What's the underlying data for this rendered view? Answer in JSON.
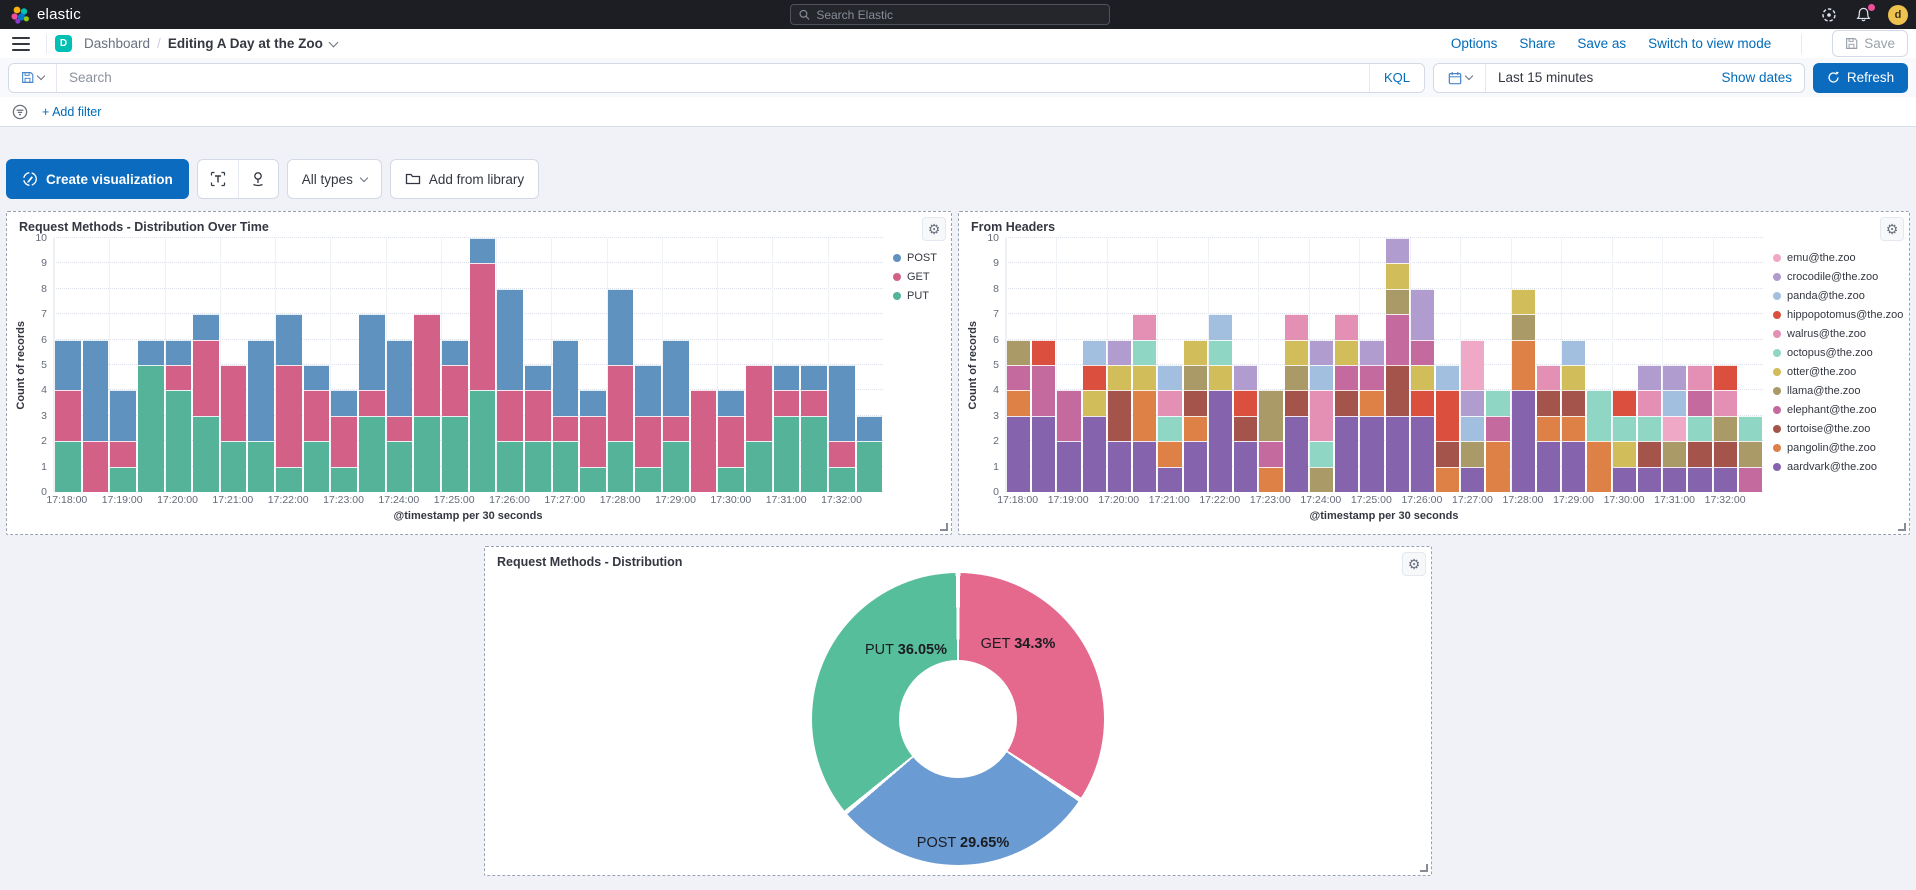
{
  "topbar": {
    "brand": "elastic",
    "search_placeholder": "Search Elastic",
    "avatar_initial": "d"
  },
  "nav": {
    "breadcrumb_root": "Dashboard",
    "breadcrumb_current": "Editing A Day at the Zoo",
    "space_initial": "D",
    "links": [
      "Options",
      "Share",
      "Save as",
      "Switch to view mode"
    ],
    "save_label": "Save"
  },
  "querybar": {
    "placeholder": "Search",
    "kql_label": "KQL",
    "time_range": "Last 15 minutes",
    "show_dates_label": "Show dates",
    "refresh_label": "Refresh",
    "add_filter_label": "+ Add filter"
  },
  "edit_toolbar": {
    "create_viz_label": "Create visualization",
    "all_types_label": "All types",
    "add_from_library_label": "Add from library"
  },
  "colors": {
    "primary": "#0a6bbf",
    "link": "#006bb8",
    "topbar_bg": "#1d1e24",
    "panel_border": "#98a2b3",
    "space_badge": "#00bfb3",
    "notification_dot": "#f04e98"
  },
  "chart_data": [
    {
      "type": "bar",
      "stacked": true,
      "title": "Request Methods - Distribution Over Time",
      "xlabel": "@timestamp per 30 seconds",
      "ylabel": "Count of records",
      "ylim": [
        0,
        10
      ],
      "y_ticks": [
        0,
        1,
        2,
        3,
        4,
        5,
        6,
        7,
        8,
        9,
        10
      ],
      "legend_position": "right",
      "x_ticks": [
        "17:18:00",
        "17:19:00",
        "17:20:00",
        "17:21:00",
        "17:22:00",
        "17:23:00",
        "17:24:00",
        "17:25:00",
        "17:26:00",
        "17:27:00",
        "17:28:00",
        "17:29:00",
        "17:30:00",
        "17:31:00",
        "17:32:00"
      ],
      "categories": [
        "17:18:00",
        "17:18:30",
        "17:19:00",
        "17:19:30",
        "17:20:00",
        "17:20:30",
        "17:21:00",
        "17:21:30",
        "17:22:00",
        "17:22:30",
        "17:23:00",
        "17:23:30",
        "17:24:00",
        "17:24:30",
        "17:25:00",
        "17:25:30",
        "17:26:00",
        "17:26:30",
        "17:27:00",
        "17:27:30",
        "17:28:00",
        "17:28:30",
        "17:29:00",
        "17:29:30",
        "17:30:00",
        "17:30:30",
        "17:31:00",
        "17:31:30",
        "17:32:00",
        "17:32:30"
      ],
      "stack_order": [
        "PUT",
        "GET",
        "POST"
      ],
      "series": [
        {
          "name": "POST",
          "color": "#6092c0",
          "values": [
            2,
            4,
            2,
            1,
            1,
            1,
            0,
            4,
            2,
            1,
            1,
            3,
            3,
            0,
            1,
            1,
            4,
            1,
            3,
            1,
            3,
            2,
            3,
            0,
            1,
            0,
            1,
            1,
            3,
            1
          ]
        },
        {
          "name": "GET",
          "color": "#d36086",
          "values": [
            2,
            2,
            1,
            0,
            1,
            3,
            3,
            0,
            4,
            2,
            2,
            1,
            1,
            4,
            2,
            5,
            2,
            2,
            1,
            2,
            3,
            2,
            1,
            4,
            2,
            3,
            1,
            1,
            1,
            0
          ]
        },
        {
          "name": "PUT",
          "color": "#54b399",
          "values": [
            2,
            0,
            1,
            5,
            4,
            3,
            2,
            2,
            1,
            2,
            1,
            3,
            2,
            3,
            3,
            4,
            2,
            2,
            2,
            1,
            2,
            1,
            2,
            0,
            1,
            2,
            3,
            3,
            1,
            2
          ]
        }
      ]
    },
    {
      "type": "bar",
      "stacked": true,
      "title": "From Headers",
      "xlabel": "@timestamp per 30 seconds",
      "ylabel": "Count of records",
      "ylim": [
        0,
        10
      ],
      "y_ticks": [
        0,
        1,
        2,
        3,
        4,
        5,
        6,
        7,
        8,
        9,
        10
      ],
      "legend_position": "right",
      "x_ticks": [
        "17:18:00",
        "17:19:00",
        "17:20:00",
        "17:21:00",
        "17:22:00",
        "17:23:00",
        "17:24:00",
        "17:25:00",
        "17:26:00",
        "17:27:00",
        "17:28:00",
        "17:29:00",
        "17:30:00",
        "17:31:00",
        "17:32:00"
      ],
      "categories": [
        "17:18:00",
        "17:18:30",
        "17:19:00",
        "17:19:30",
        "17:20:00",
        "17:20:30",
        "17:21:00",
        "17:21:30",
        "17:22:00",
        "17:22:30",
        "17:23:00",
        "17:23:30",
        "17:24:00",
        "17:24:30",
        "17:25:00",
        "17:25:30",
        "17:26:00",
        "17:26:30",
        "17:27:00",
        "17:27:30",
        "17:28:00",
        "17:28:30",
        "17:29:00",
        "17:29:30",
        "17:30:00",
        "17:30:30",
        "17:31:00",
        "17:31:30",
        "17:32:00",
        "17:32:30"
      ],
      "legend": [
        {
          "key": "emu",
          "label": "emu@the.zoo",
          "color": "#efa9c6"
        },
        {
          "key": "crocodile",
          "label": "crocodile@the.zoo",
          "color": "#b09ccf"
        },
        {
          "key": "panda",
          "label": "panda@the.zoo",
          "color": "#a2bfe0"
        },
        {
          "key": "hippopotomus",
          "label": "hippopotomus@the.zoo",
          "color": "#da4f3e"
        },
        {
          "key": "walrus",
          "label": "walrus@the.zoo",
          "color": "#e48fb4"
        },
        {
          "key": "octopus",
          "label": "octopus@the.zoo",
          "color": "#8fd6c4"
        },
        {
          "key": "otter",
          "label": "otter@the.zoo",
          "color": "#d1bd5a"
        },
        {
          "key": "llama",
          "label": "llama@the.zoo",
          "color": "#aa9a68"
        },
        {
          "key": "elephant",
          "label": "elephant@the.zoo",
          "color": "#c46a9f"
        },
        {
          "key": "tortoise",
          "label": "tortoise@the.zoo",
          "color": "#a4544b"
        },
        {
          "key": "pangolin",
          "label": "pangolin@the.zoo",
          "color": "#de8146"
        },
        {
          "key": "aardvark",
          "label": "aardvark@the.zoo",
          "color": "#8564ad"
        }
      ],
      "bars": [
        [
          "aardvark",
          "aardvark",
          "aardvark",
          "pangolin",
          "elephant",
          "llama"
        ],
        [
          "aardvark",
          "aardvark",
          "aardvark",
          "elephant",
          "elephant",
          "hippopotomus"
        ],
        [
          "aardvark",
          "aardvark",
          "elephant",
          "elephant"
        ],
        [
          "aardvark",
          "aardvark",
          "aardvark",
          "otter",
          "hippopotomus",
          "panda"
        ],
        [
          "aardvark",
          "aardvark",
          "tortoise",
          "tortoise",
          "otter",
          "crocodile"
        ],
        [
          "aardvark",
          "aardvark",
          "pangolin",
          "pangolin",
          "otter",
          "octopus",
          "walrus"
        ],
        [
          "aardvark",
          "pangolin",
          "octopus",
          "walrus",
          "panda"
        ],
        [
          "aardvark",
          "aardvark",
          "pangolin",
          "tortoise",
          "llama",
          "otter"
        ],
        [
          "aardvark",
          "aardvark",
          "aardvark",
          "aardvark",
          "otter",
          "octopus",
          "panda"
        ],
        [
          "aardvark",
          "aardvark",
          "tortoise",
          "hippopotomus",
          "crocodile"
        ],
        [
          "pangolin",
          "elephant",
          "llama",
          "llama"
        ],
        [
          "aardvark",
          "aardvark",
          "aardvark",
          "tortoise",
          "llama",
          "otter",
          "walrus"
        ],
        [
          "llama",
          "octopus",
          "walrus",
          "walrus",
          "panda",
          "crocodile"
        ],
        [
          "aardvark",
          "aardvark",
          "aardvark",
          "tortoise",
          "elephant",
          "otter",
          "walrus"
        ],
        [
          "aardvark",
          "aardvark",
          "aardvark",
          "pangolin",
          "elephant",
          "crocodile"
        ],
        [
          "aardvark",
          "aardvark",
          "aardvark",
          "tortoise",
          "tortoise",
          "elephant",
          "elephant",
          "llama",
          "otter",
          "crocodile"
        ],
        [
          "aardvark",
          "aardvark",
          "aardvark",
          "hippopotomus",
          "otter",
          "elephant",
          "crocodile",
          "crocodile"
        ],
        [
          "pangolin",
          "tortoise",
          "hippopotomus",
          "hippopotomus",
          "panda"
        ],
        [
          "aardvark",
          "llama",
          "panda",
          "crocodile",
          "emu",
          "emu"
        ],
        [
          "pangolin",
          "pangolin",
          "elephant",
          "octopus"
        ],
        [
          "aardvark",
          "aardvark",
          "aardvark",
          "aardvark",
          "pangolin",
          "pangolin",
          "llama",
          "otter"
        ],
        [
          "aardvark",
          "aardvark",
          "pangolin",
          "tortoise",
          "walrus"
        ],
        [
          "aardvark",
          "aardvark",
          "pangolin",
          "tortoise",
          "otter",
          "panda"
        ],
        [
          "pangolin",
          "pangolin",
          "octopus",
          "octopus"
        ],
        [
          "aardvark",
          "otter",
          "octopus",
          "hippopotomus"
        ],
        [
          "aardvark",
          "tortoise",
          "octopus",
          "walrus",
          "crocodile"
        ],
        [
          "aardvark",
          "llama",
          "emu",
          "panda",
          "crocodile"
        ],
        [
          "aardvark",
          "tortoise",
          "octopus",
          "elephant",
          "walrus"
        ],
        [
          "aardvark",
          "tortoise",
          "llama",
          "walrus",
          "hippopotomus"
        ],
        [
          "elephant",
          "llama",
          "octopus"
        ]
      ]
    },
    {
      "type": "pie",
      "donut": true,
      "title": "Request Methods - Distribution",
      "slices": [
        {
          "label": "GET",
          "pct": 34.3,
          "pct_label": "34.3%",
          "color": "#e5688d"
        },
        {
          "label": "POST",
          "pct": 29.65,
          "pct_label": "29.65%",
          "color": "#6b9bd3"
        },
        {
          "label": "PUT",
          "pct": 36.05,
          "pct_label": "36.05%",
          "color": "#57be9b"
        }
      ]
    }
  ]
}
